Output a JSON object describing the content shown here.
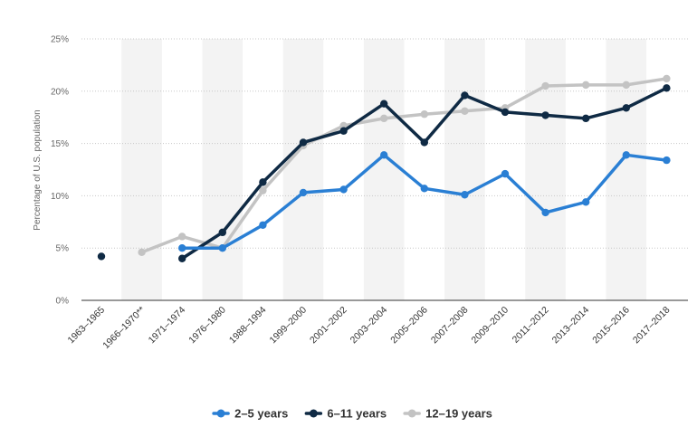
{
  "chart_data": {
    "type": "line",
    "categories": [
      "1963–1965",
      "1966–1970**",
      "1971–1974",
      "1976–1980",
      "1988–1994",
      "1999–2000",
      "2001–2002",
      "2003–2004",
      "2005–2006",
      "2007–2008",
      "2009–2010",
      "2011–2012",
      "2013–2014",
      "2015–2016",
      "2017–2018"
    ],
    "series": [
      {
        "name": "2-5 years",
        "color": "#2a7fd4",
        "values": [
          null,
          null,
          5.0,
          5.0,
          7.2,
          10.3,
          10.6,
          13.9,
          10.7,
          10.1,
          12.1,
          8.4,
          9.4,
          13.9,
          13.4
        ]
      },
      {
        "name": "6-11 years",
        "color": "#0f2a44",
        "values": [
          4.2,
          null,
          4.0,
          6.5,
          11.3,
          15.1,
          16.2,
          18.8,
          15.1,
          19.6,
          18.0,
          17.7,
          17.4,
          18.4,
          20.3
        ]
      },
      {
        "name": "12-19 years",
        "color": "#c3c3c3",
        "values": [
          null,
          4.6,
          6.1,
          5.0,
          10.5,
          14.8,
          16.7,
          17.4,
          17.8,
          18.1,
          18.4,
          20.5,
          20.6,
          20.6,
          21.2
        ]
      }
    ],
    "ylabel": "Percentage of U.S. population",
    "xlabel": "",
    "ylim": [
      0,
      25
    ],
    "yticks": [
      0,
      5,
      10,
      15,
      20,
      25
    ],
    "ytick_labels": [
      "0%",
      "5%",
      "10%",
      "15%",
      "20%",
      "25%"
    ],
    "grid": true,
    "legend_position": "bottom"
  }
}
